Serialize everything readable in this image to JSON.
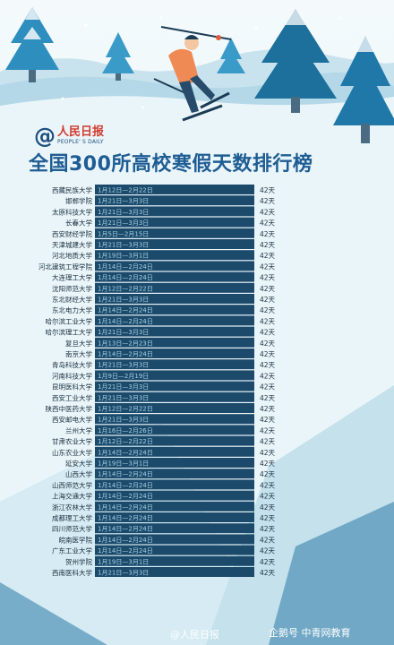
{
  "logo": {
    "cn": "人民日报",
    "en": "PEOPLE' S DAILY"
  },
  "title": "全国300所高校寒假天数排行榜",
  "footer": {
    "left": "@人民日报",
    "right": "企鹅号 中青网教育"
  },
  "colors": {
    "bar": "#1b4a6b",
    "bar_text": "#a7d2e6",
    "label": "#1a3040",
    "days_text": "#1a3040",
    "title": "#1e5d93"
  },
  "chart_data": {
    "type": "bar",
    "title": "全国300所高校寒假天数排行榜",
    "orientation": "horizontal",
    "categories": [
      "西藏民族大学",
      "邯郸学院",
      "太原科技大学",
      "长春大学",
      "西安财经学院",
      "天津城建大学",
      "河北地质大学",
      "河北建筑工程学院",
      "大连理工大学",
      "沈阳师范大学",
      "东北财经大学",
      "东北电力大学",
      "哈尔滨工业大学",
      "哈尔滨理工大学",
      "复旦大学",
      "南京大学",
      "青岛科技大学",
      "河南科技大学",
      "昆明医科大学",
      "西安工业大学",
      "陕西中医药大学",
      "西安邮电大学",
      "兰州大学",
      "甘肃农业大学",
      "山东农业大学",
      "延安大学",
      "山西大学",
      "山西师范大学",
      "上海交通大学",
      "浙江农林大学",
      "成都理工大学",
      "四川师范大学",
      "皖南医学院",
      "广东工业大学",
      "贺州学院",
      "西南医科大学"
    ],
    "periods": [
      "1月12日—2月22日",
      "1月21日—3月3日",
      "1月21日—3月3日",
      "1月21日—3月3日",
      "1月5日—2月15日",
      "1月21日—3月3日",
      "1月19日—3月1日",
      "1月14日—2月24日",
      "1月14日—2月24日",
      "1月12日—2月22日",
      "1月21日—3月3日",
      "1月14日—2月24日",
      "1月14日—2月24日",
      "1月21日—3月3日",
      "1月13日—2月23日",
      "1月14日—2月24日",
      "1月21日—3月3日",
      "1月9日—2月19日",
      "1月21日—3月3日",
      "1月21日—3月3日",
      "1月12日—2月22日",
      "1月21日—3月3日",
      "1月16日—2月26日",
      "1月12日—2月22日",
      "1月14日—2月24日",
      "1月19日—3月1日",
      "1月14日—2月24日",
      "1月14日—2月24日",
      "1月14日—2月24日",
      "1月14日—2月24日",
      "1月14日—2月24日",
      "1月14日—2月24日",
      "1月14日—2月24日",
      "1月14日—2月24日",
      "1月19日—3月1日",
      "1月21日—3月3日"
    ],
    "values": [
      42,
      42,
      42,
      42,
      42,
      42,
      42,
      42,
      42,
      42,
      42,
      42,
      42,
      42,
      42,
      42,
      42,
      42,
      42,
      42,
      42,
      42,
      42,
      42,
      42,
      42,
      42,
      42,
      42,
      42,
      42,
      42,
      42,
      42,
      42,
      42
    ],
    "value_labels": [
      "42天",
      "42天",
      "42天",
      "42天",
      "42天",
      "42天",
      "42天",
      "42天",
      "42天",
      "42天",
      "42天",
      "42天",
      "42天",
      "42天",
      "42天",
      "42天",
      "42天",
      "42天",
      "42天",
      "42天",
      "42天",
      "42天",
      "42天",
      "42天",
      "42天",
      "42天",
      "42天",
      "42天",
      "42天",
      "42天",
      "42天",
      "42天",
      "42天",
      "42天",
      "42天",
      "42天"
    ],
    "unit": "天",
    "xlim": [
      0,
      42
    ],
    "grid": false,
    "legend": "none"
  }
}
